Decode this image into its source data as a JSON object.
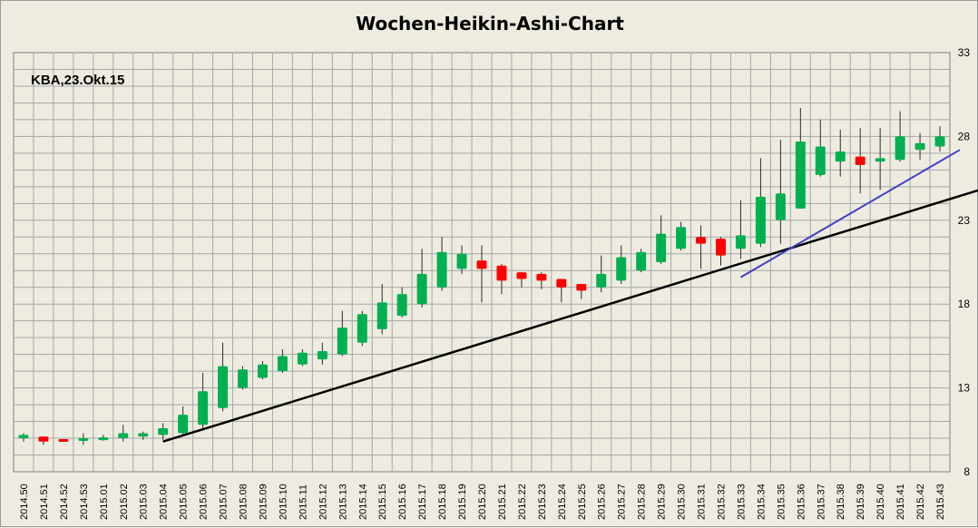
{
  "chart_data": {
    "type": "candlestick",
    "title": "Wochen-Heikin-Ashi-Chart",
    "annotation": "KBA,23.Okt.15",
    "xlabel": "",
    "ylabel": "",
    "ylim": [
      8,
      33
    ],
    "yticks": [
      8,
      13,
      18,
      23,
      28,
      33
    ],
    "grid": true,
    "y_axis_side": "right",
    "colors": {
      "up": "#00b050",
      "down": "#ff0000",
      "trend_black": "#000000",
      "trend_blue": "#4040c8",
      "grid": "#a6a6a6",
      "background": "#eeece1"
    },
    "categories": [
      "2014.50",
      "2014.51",
      "2014.52",
      "2014.53",
      "2015.01",
      "2015.02",
      "2015.03",
      "2015.04",
      "2015.05",
      "2015.06",
      "2015.07",
      "2015.08",
      "2015.09",
      "2015.10",
      "2015.11",
      "2015.12",
      "2015.13",
      "2015.14",
      "2015.15",
      "2015.16",
      "2015.17",
      "2015.18",
      "2015.19",
      "2015.20",
      "2015.21",
      "2015.22",
      "2015.23",
      "2015.24",
      "2015.25",
      "2015.26",
      "2015.27",
      "2015.28",
      "2015.29",
      "2015.30",
      "2015.31",
      "2015.32",
      "2015.33",
      "2015.34",
      "2015.35",
      "2015.36",
      "2015.37",
      "2015.38",
      "2015.39",
      "2015.40",
      "2015.41",
      "2015.42",
      "2015.43"
    ],
    "ohlc": [
      {
        "o": 10.0,
        "h": 10.3,
        "l": 9.8,
        "c": 10.2
      },
      {
        "o": 10.1,
        "h": 10.1,
        "l": 9.6,
        "c": 9.8
      },
      {
        "o": 9.95,
        "h": 9.95,
        "l": 9.8,
        "c": 9.85
      },
      {
        "o": 9.9,
        "h": 10.3,
        "l": 9.6,
        "c": 10.0
      },
      {
        "o": 9.9,
        "h": 10.2,
        "l": 9.85,
        "c": 10.05
      },
      {
        "o": 10.0,
        "h": 10.8,
        "l": 9.8,
        "c": 10.3
      },
      {
        "o": 10.1,
        "h": 10.4,
        "l": 9.9,
        "c": 10.3
      },
      {
        "o": 10.2,
        "h": 10.9,
        "l": 9.9,
        "c": 10.6
      },
      {
        "o": 10.3,
        "h": 11.9,
        "l": 10.1,
        "c": 11.4
      },
      {
        "o": 10.8,
        "h": 13.9,
        "l": 10.6,
        "c": 12.8
      },
      {
        "o": 11.8,
        "h": 15.7,
        "l": 11.6,
        "c": 14.3
      },
      {
        "o": 13.0,
        "h": 14.3,
        "l": 12.9,
        "c": 14.1
      },
      {
        "o": 13.6,
        "h": 14.6,
        "l": 13.5,
        "c": 14.4
      },
      {
        "o": 14.0,
        "h": 15.3,
        "l": 13.9,
        "c": 14.9
      },
      {
        "o": 14.4,
        "h": 15.3,
        "l": 14.3,
        "c": 15.1
      },
      {
        "o": 14.7,
        "h": 15.7,
        "l": 14.4,
        "c": 15.2
      },
      {
        "o": 15.0,
        "h": 17.6,
        "l": 14.9,
        "c": 16.6
      },
      {
        "o": 15.7,
        "h": 17.6,
        "l": 15.5,
        "c": 17.4
      },
      {
        "o": 16.5,
        "h": 19.2,
        "l": 16.2,
        "c": 18.1
      },
      {
        "o": 17.3,
        "h": 19.0,
        "l": 17.2,
        "c": 18.6
      },
      {
        "o": 18.0,
        "h": 21.3,
        "l": 17.8,
        "c": 19.8
      },
      {
        "o": 19.0,
        "h": 22.0,
        "l": 18.8,
        "c": 21.1
      },
      {
        "o": 20.1,
        "h": 21.5,
        "l": 19.8,
        "c": 21.0
      },
      {
        "o": 20.6,
        "h": 21.5,
        "l": 18.1,
        "c": 20.1
      },
      {
        "o": 20.3,
        "h": 20.4,
        "l": 18.6,
        "c": 19.4
      },
      {
        "o": 19.9,
        "h": 19.9,
        "l": 19.0,
        "c": 19.5
      },
      {
        "o": 19.8,
        "h": 19.9,
        "l": 18.9,
        "c": 19.4
      },
      {
        "o": 19.5,
        "h": 19.5,
        "l": 18.1,
        "c": 19.0
      },
      {
        "o": 19.2,
        "h": 19.2,
        "l": 18.3,
        "c": 18.8
      },
      {
        "o": 19.0,
        "h": 20.9,
        "l": 18.7,
        "c": 19.8
      },
      {
        "o": 19.4,
        "h": 21.5,
        "l": 19.2,
        "c": 20.8
      },
      {
        "o": 20.0,
        "h": 21.3,
        "l": 19.9,
        "c": 21.1
      },
      {
        "o": 20.5,
        "h": 23.3,
        "l": 20.4,
        "c": 22.2
      },
      {
        "o": 21.3,
        "h": 22.9,
        "l": 21.2,
        "c": 22.6
      },
      {
        "o": 22.0,
        "h": 22.7,
        "l": 20.1,
        "c": 21.6
      },
      {
        "o": 21.9,
        "h": 22.0,
        "l": 20.3,
        "c": 20.9
      },
      {
        "o": 21.3,
        "h": 24.2,
        "l": 20.7,
        "c": 22.1
      },
      {
        "o": 21.6,
        "h": 26.7,
        "l": 21.4,
        "c": 24.4
      },
      {
        "o": 23.0,
        "h": 27.8,
        "l": 21.6,
        "c": 24.6
      },
      {
        "o": 23.7,
        "h": 29.7,
        "l": 23.7,
        "c": 27.7
      },
      {
        "o": 25.7,
        "h": 29.0,
        "l": 25.6,
        "c": 27.4
      },
      {
        "o": 26.5,
        "h": 28.4,
        "l": 25.6,
        "c": 27.1
      },
      {
        "o": 26.8,
        "h": 28.5,
        "l": 24.6,
        "c": 26.3
      },
      {
        "o": 26.5,
        "h": 28.5,
        "l": 24.8,
        "c": 26.7
      },
      {
        "o": 26.6,
        "h": 29.5,
        "l": 26.5,
        "c": 28.0
      },
      {
        "o": 27.2,
        "h": 28.2,
        "l": 26.6,
        "c": 27.6
      },
      {
        "o": 27.4,
        "h": 28.6,
        "l": 27.1,
        "c": 28.0
      }
    ],
    "trendlines": [
      {
        "color": "black",
        "from_index": 7,
        "from_value": 9.8,
        "to_index": 48,
        "to_value": 24.8
      },
      {
        "color": "blue",
        "from_index": 36,
        "from_value": 19.6,
        "to_index": 47,
        "to_value": 27.2
      }
    ]
  }
}
